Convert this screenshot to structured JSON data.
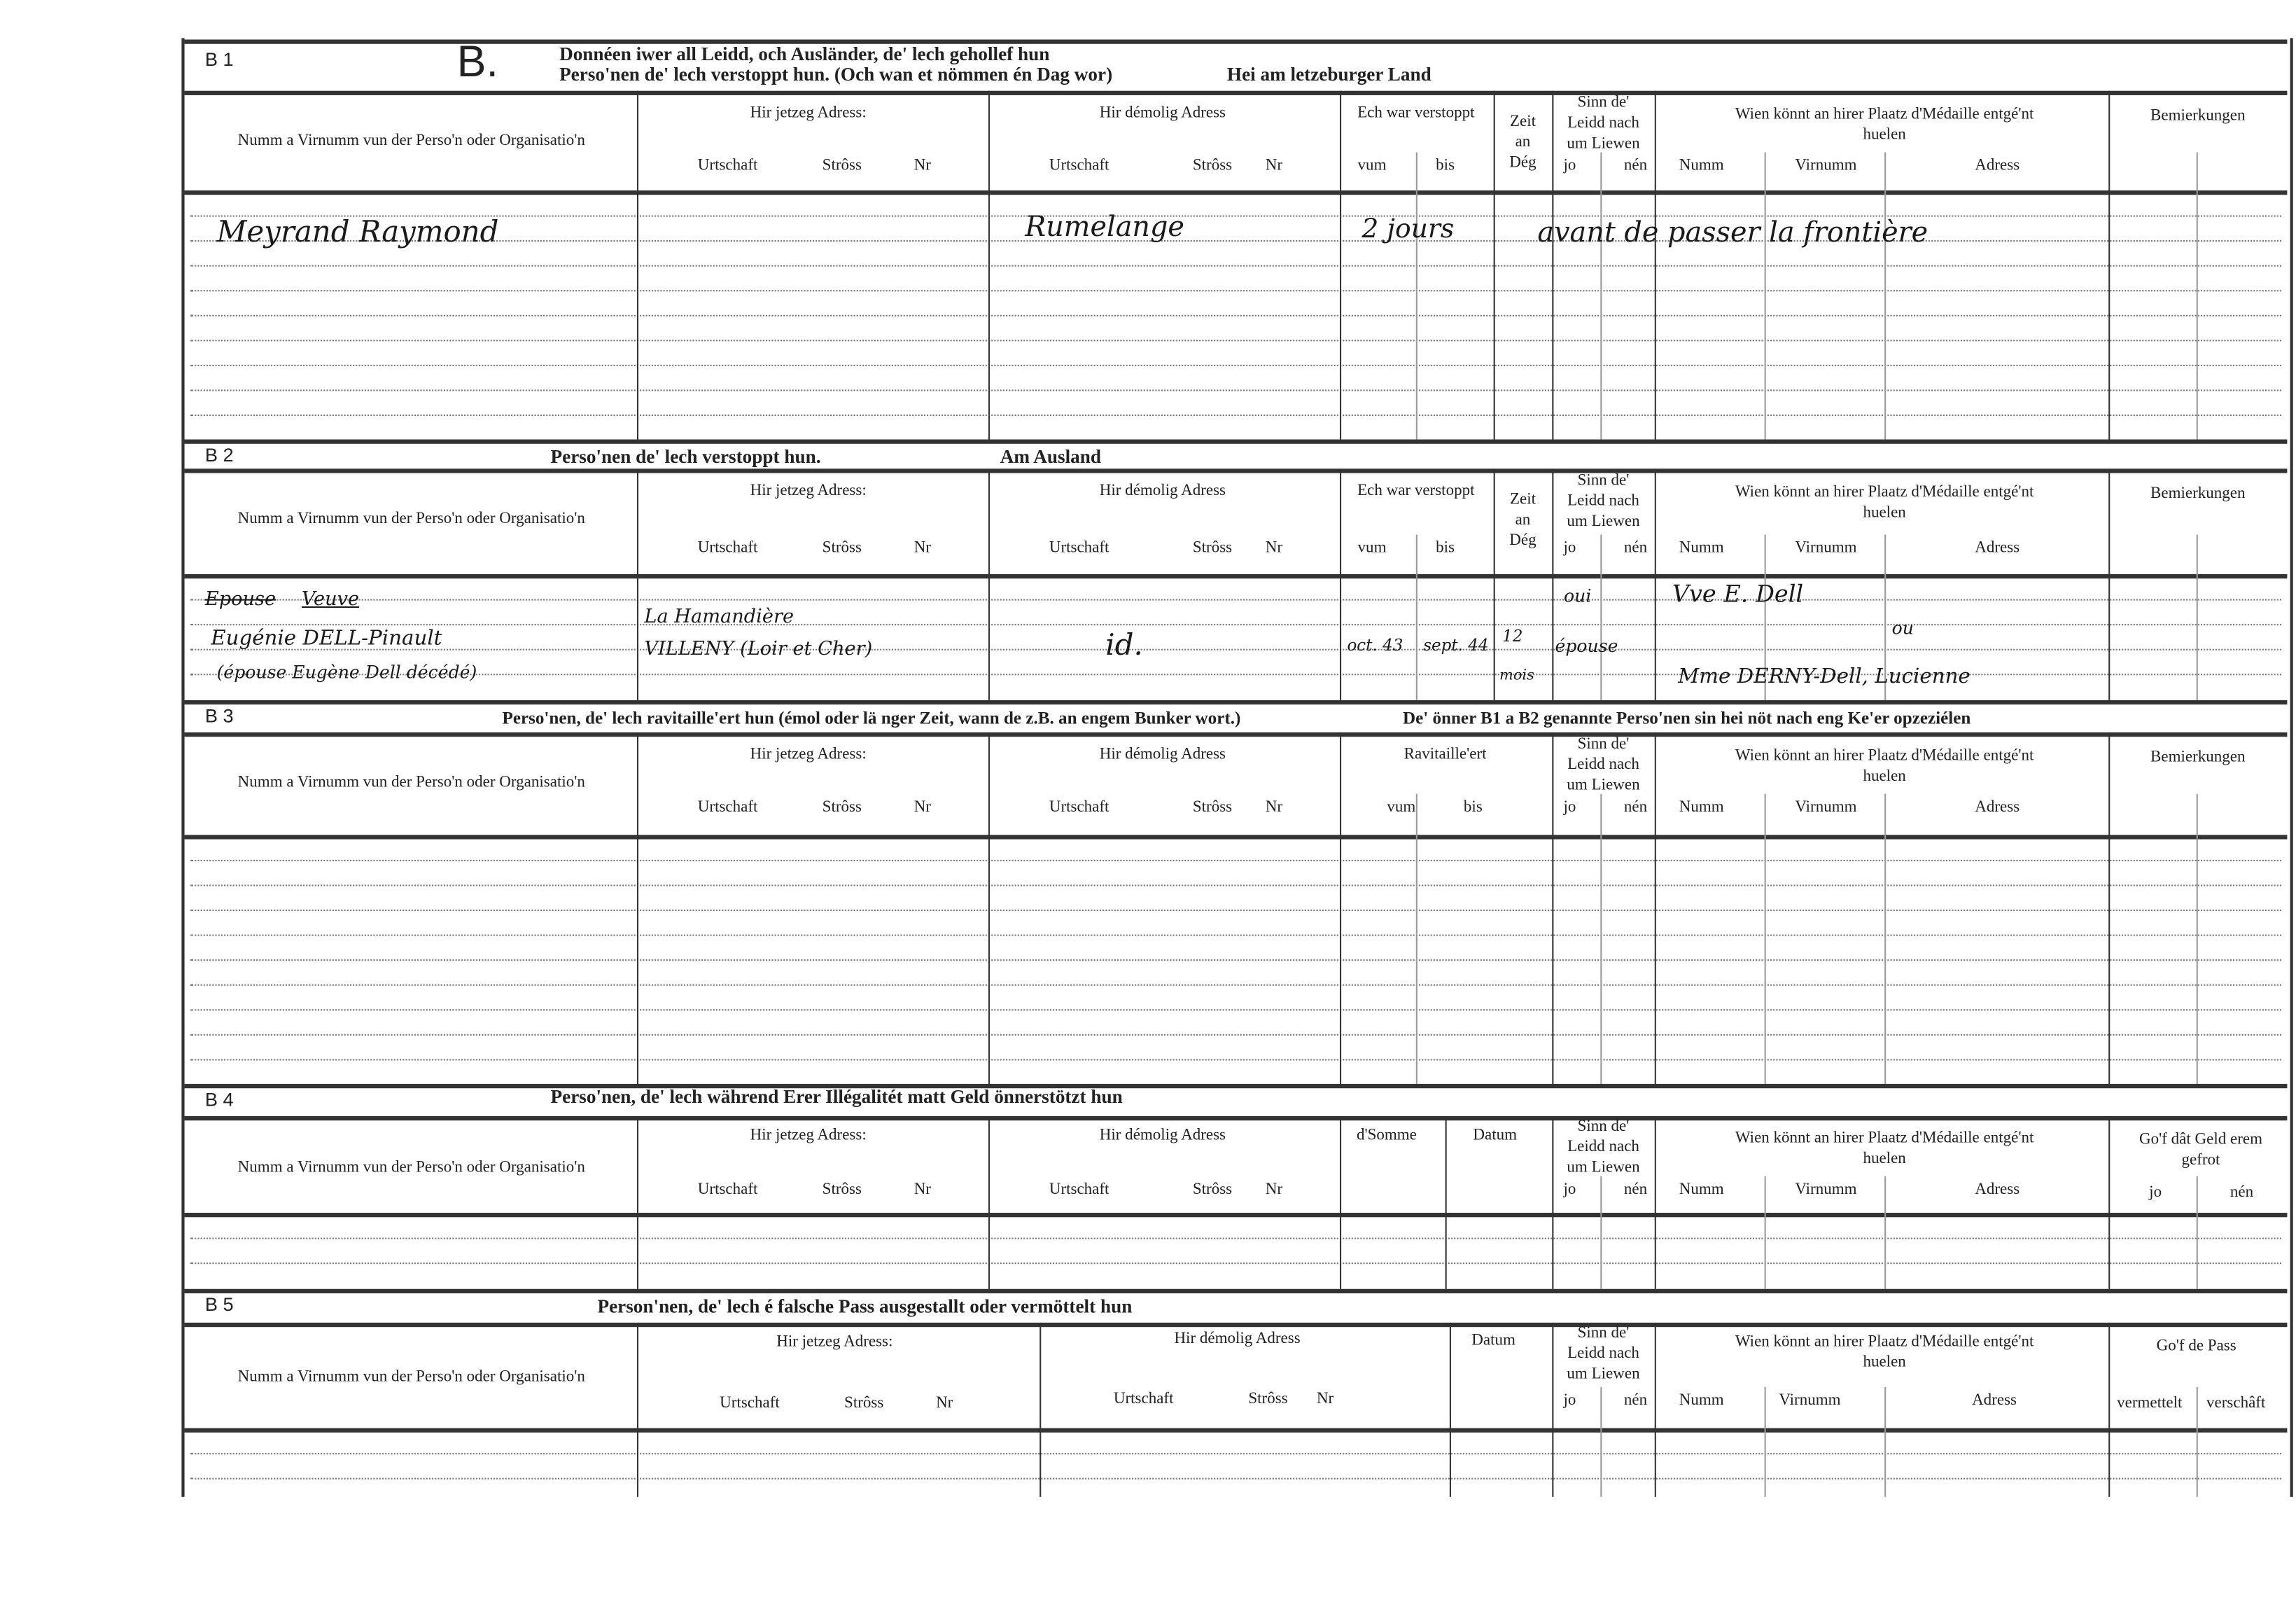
{
  "form_letter": "B.",
  "common": {
    "name_header": "Numm a Virnumm vun der Perso'n oder Organisatio'n",
    "current_address": "Hir jetzeg Adress:",
    "previous_address": "Hir démolig Adress",
    "urtschaft": "Urtschaft",
    "stross": "Strôss",
    "nr": "Nr",
    "hidden": "Ech war verstoppt",
    "vum": "vum",
    "bis": "bis",
    "zeit": "Zeit an Dég",
    "sinn": "Sinn de' Leidd nach um Liewen",
    "jo": "jo",
    "nen": "nén",
    "wien": "Wien könnt an hirer Plaatz d'Médaille entgé'nt huelen",
    "numm": "Numm",
    "virnumm": "Virnumm",
    "adress": "Adress",
    "bemerkungen": "Bemierkungen",
    "ravitailleert": "Ravitaille'ert",
    "somme": "d'Somme",
    "datum": "Datum",
    "geld": "Go'f dât Geld erem gefrot",
    "pass": "Go'f de Pass",
    "vermettelt": "vermettelt",
    "verschaft": "verschâft"
  },
  "sections": [
    {
      "id": "B 1",
      "title": "Donnéen iwer all Leidd, och Ausländer, de' lech gehollef hun",
      "title2": "Perso'nen de' lech verstoppt hun. (Och wan et nömmen én Dag wor)",
      "title3": "Hei am letzeburger Land"
    },
    {
      "id": "B 2",
      "title": "Perso'nen de' lech verstoppt hun.",
      "title3": "Am Ausland"
    },
    {
      "id": "B 3",
      "title": "Perso'nen, de' lech ravitaille'ert hun (émol oder lä nger Zeit, wann de z.B. an engem Bunker wort.)",
      "title3": "De' önner B1 a B2 genannte Perso'nen sin hei nöt nach eng Ke'er opzeziélen"
    },
    {
      "id": "B 4",
      "title": "Perso'nen, de' lech während Erer Illégalitét matt Geld önnerstötzt hun"
    },
    {
      "id": "B 5",
      "title": "Person'nen, de' lech é falsche Pass ausgestallt oder vermöttelt hun"
    }
  ],
  "entries": {
    "b1": {
      "name": "Meyrand Raymond",
      "prev_town": "Rumelange",
      "from": "2 jours",
      "note": "avant de passer la frontière"
    },
    "b2": {
      "name_struck": "Epouse",
      "name_1": "Veuve",
      "name_2": "Eugénie DELL-Pinault",
      "name_3": "(épouse Eugène Dell décédé)",
      "cur_1": "La Hamandière",
      "cur_2": "VILLENY (Loir et Cher)",
      "prev": "id.",
      "from": "oct. 43",
      "to": "sept. 44",
      "days_1": "12",
      "days_2": "mois",
      "alive_1": "oui",
      "alive_2": "épouse",
      "claim_1": "Vve E. Dell",
      "claim_or": "ou",
      "claim_2": "Mme DERNY-Dell, Lucienne"
    }
  }
}
